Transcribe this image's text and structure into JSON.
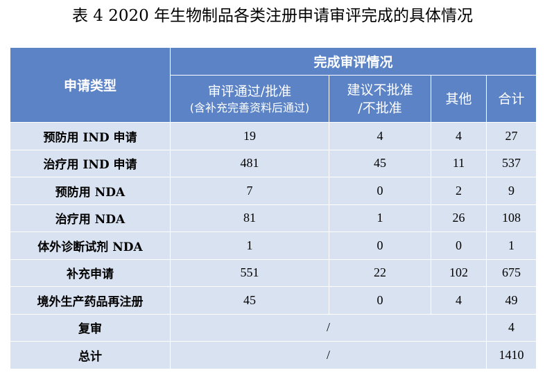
{
  "title": "表 4 2020 年生物制品各类注册申请审评完成的具体情况",
  "header": {
    "type_label": "申请类型",
    "group_label": "完成审评情况",
    "col_approved_line1": "审评通过/批准",
    "col_approved_line2": "(含补充完善资料后通过)",
    "col_rejected_line1": "建议不批准",
    "col_rejected_line2": "/不批准",
    "col_other": "其他",
    "col_total": "合计"
  },
  "rows": [
    {
      "type": "预防用 IND 申请",
      "approved": "19",
      "rejected": "4",
      "other": "4",
      "total": "27"
    },
    {
      "type": "治疗用 IND 申请",
      "approved": "481",
      "rejected": "45",
      "other": "11",
      "total": "537"
    },
    {
      "type": "预防用 NDA",
      "approved": "7",
      "rejected": "0",
      "other": "2",
      "total": "9"
    },
    {
      "type": "治疗用 NDA",
      "approved": "81",
      "rejected": "1",
      "other": "26",
      "total": "108"
    },
    {
      "type": "体外诊断试剂 NDA",
      "approved": "1",
      "rejected": "0",
      "other": "0",
      "total": "1"
    },
    {
      "type": "补充申请",
      "approved": "551",
      "rejected": "22",
      "other": "102",
      "total": "675"
    },
    {
      "type": "境外生产药品再注册",
      "approved": "45",
      "rejected": "0",
      "other": "4",
      "total": "49"
    }
  ],
  "merged_rows": [
    {
      "type": "复审",
      "merged": "/",
      "total": "4"
    },
    {
      "type": "总计",
      "merged": "/",
      "total": "1410"
    }
  ]
}
